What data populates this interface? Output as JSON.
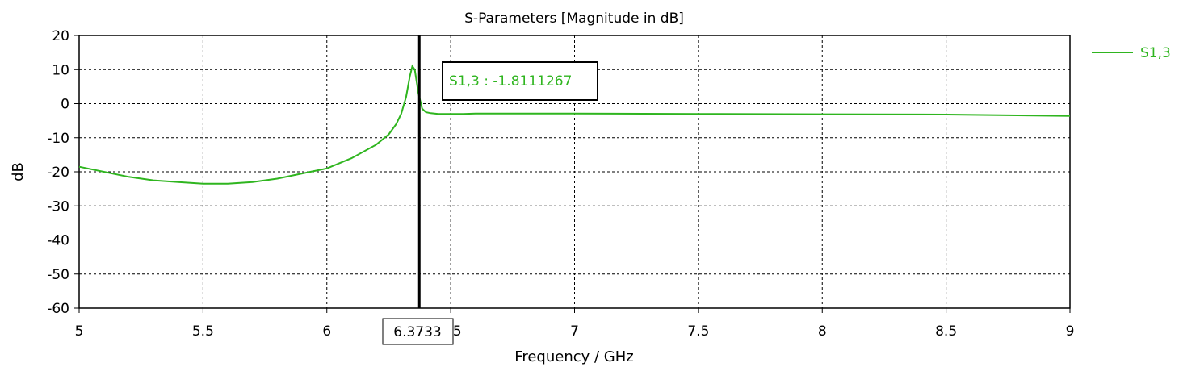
{
  "colors": {
    "series": "#2fb51f",
    "axis": "#000000",
    "grid": "#000000",
    "background": "#ffffff"
  },
  "chart_data": {
    "type": "line",
    "title": "S-Parameters [Magnitude in dB]",
    "xlabel": "Frequency / GHz",
    "ylabel": "dB",
    "xlim": [
      5,
      9
    ],
    "ylim": [
      -60,
      20
    ],
    "xticks": [
      5,
      5.5,
      6,
      6.5,
      7,
      7.5,
      8,
      8.5,
      9
    ],
    "xtick_labels": [
      "5",
      "5.5",
      "6",
      "6.5",
      "7",
      "7.5",
      "8",
      "8.5",
      "9"
    ],
    "yticks": [
      20,
      10,
      0,
      -10,
      -20,
      -30,
      -40,
      -50,
      -60
    ],
    "ytick_labels": [
      "20",
      "10",
      "0",
      "-10",
      "-20",
      "-30",
      "-40",
      "-50",
      "-60"
    ],
    "grid": true,
    "grid_style": "dotted",
    "legend": {
      "position": "top-right",
      "entries": [
        "S1,3"
      ]
    },
    "series": [
      {
        "name": "S1,3",
        "x": [
          5.0,
          5.1,
          5.2,
          5.3,
          5.4,
          5.5,
          5.6,
          5.7,
          5.8,
          5.9,
          6.0,
          6.1,
          6.2,
          6.25,
          6.28,
          6.3,
          6.32,
          6.335,
          6.345,
          6.355,
          6.37,
          6.385,
          6.4,
          6.42,
          6.45,
          6.5,
          6.55,
          6.6,
          6.7,
          6.8,
          7.0,
          7.5,
          8.0,
          8.5,
          9.0
        ],
        "y": [
          -18.5,
          -20.0,
          -21.5,
          -22.5,
          -23.0,
          -23.5,
          -23.5,
          -23.0,
          -22.0,
          -20.5,
          -19.0,
          -16.0,
          -12.0,
          -9.0,
          -6.0,
          -3.0,
          2.0,
          8.0,
          11.0,
          10.0,
          3.0,
          -1.5,
          -2.5,
          -2.8,
          -3.0,
          -3.0,
          -3.0,
          -2.9,
          -2.9,
          -2.9,
          -2.9,
          -3.0,
          -3.1,
          -3.2,
          -3.6
        ]
      }
    ],
    "marker": {
      "x": 6.3733,
      "x_label": "6.3733",
      "readout": "S1,3 : -1.8111267"
    }
  }
}
